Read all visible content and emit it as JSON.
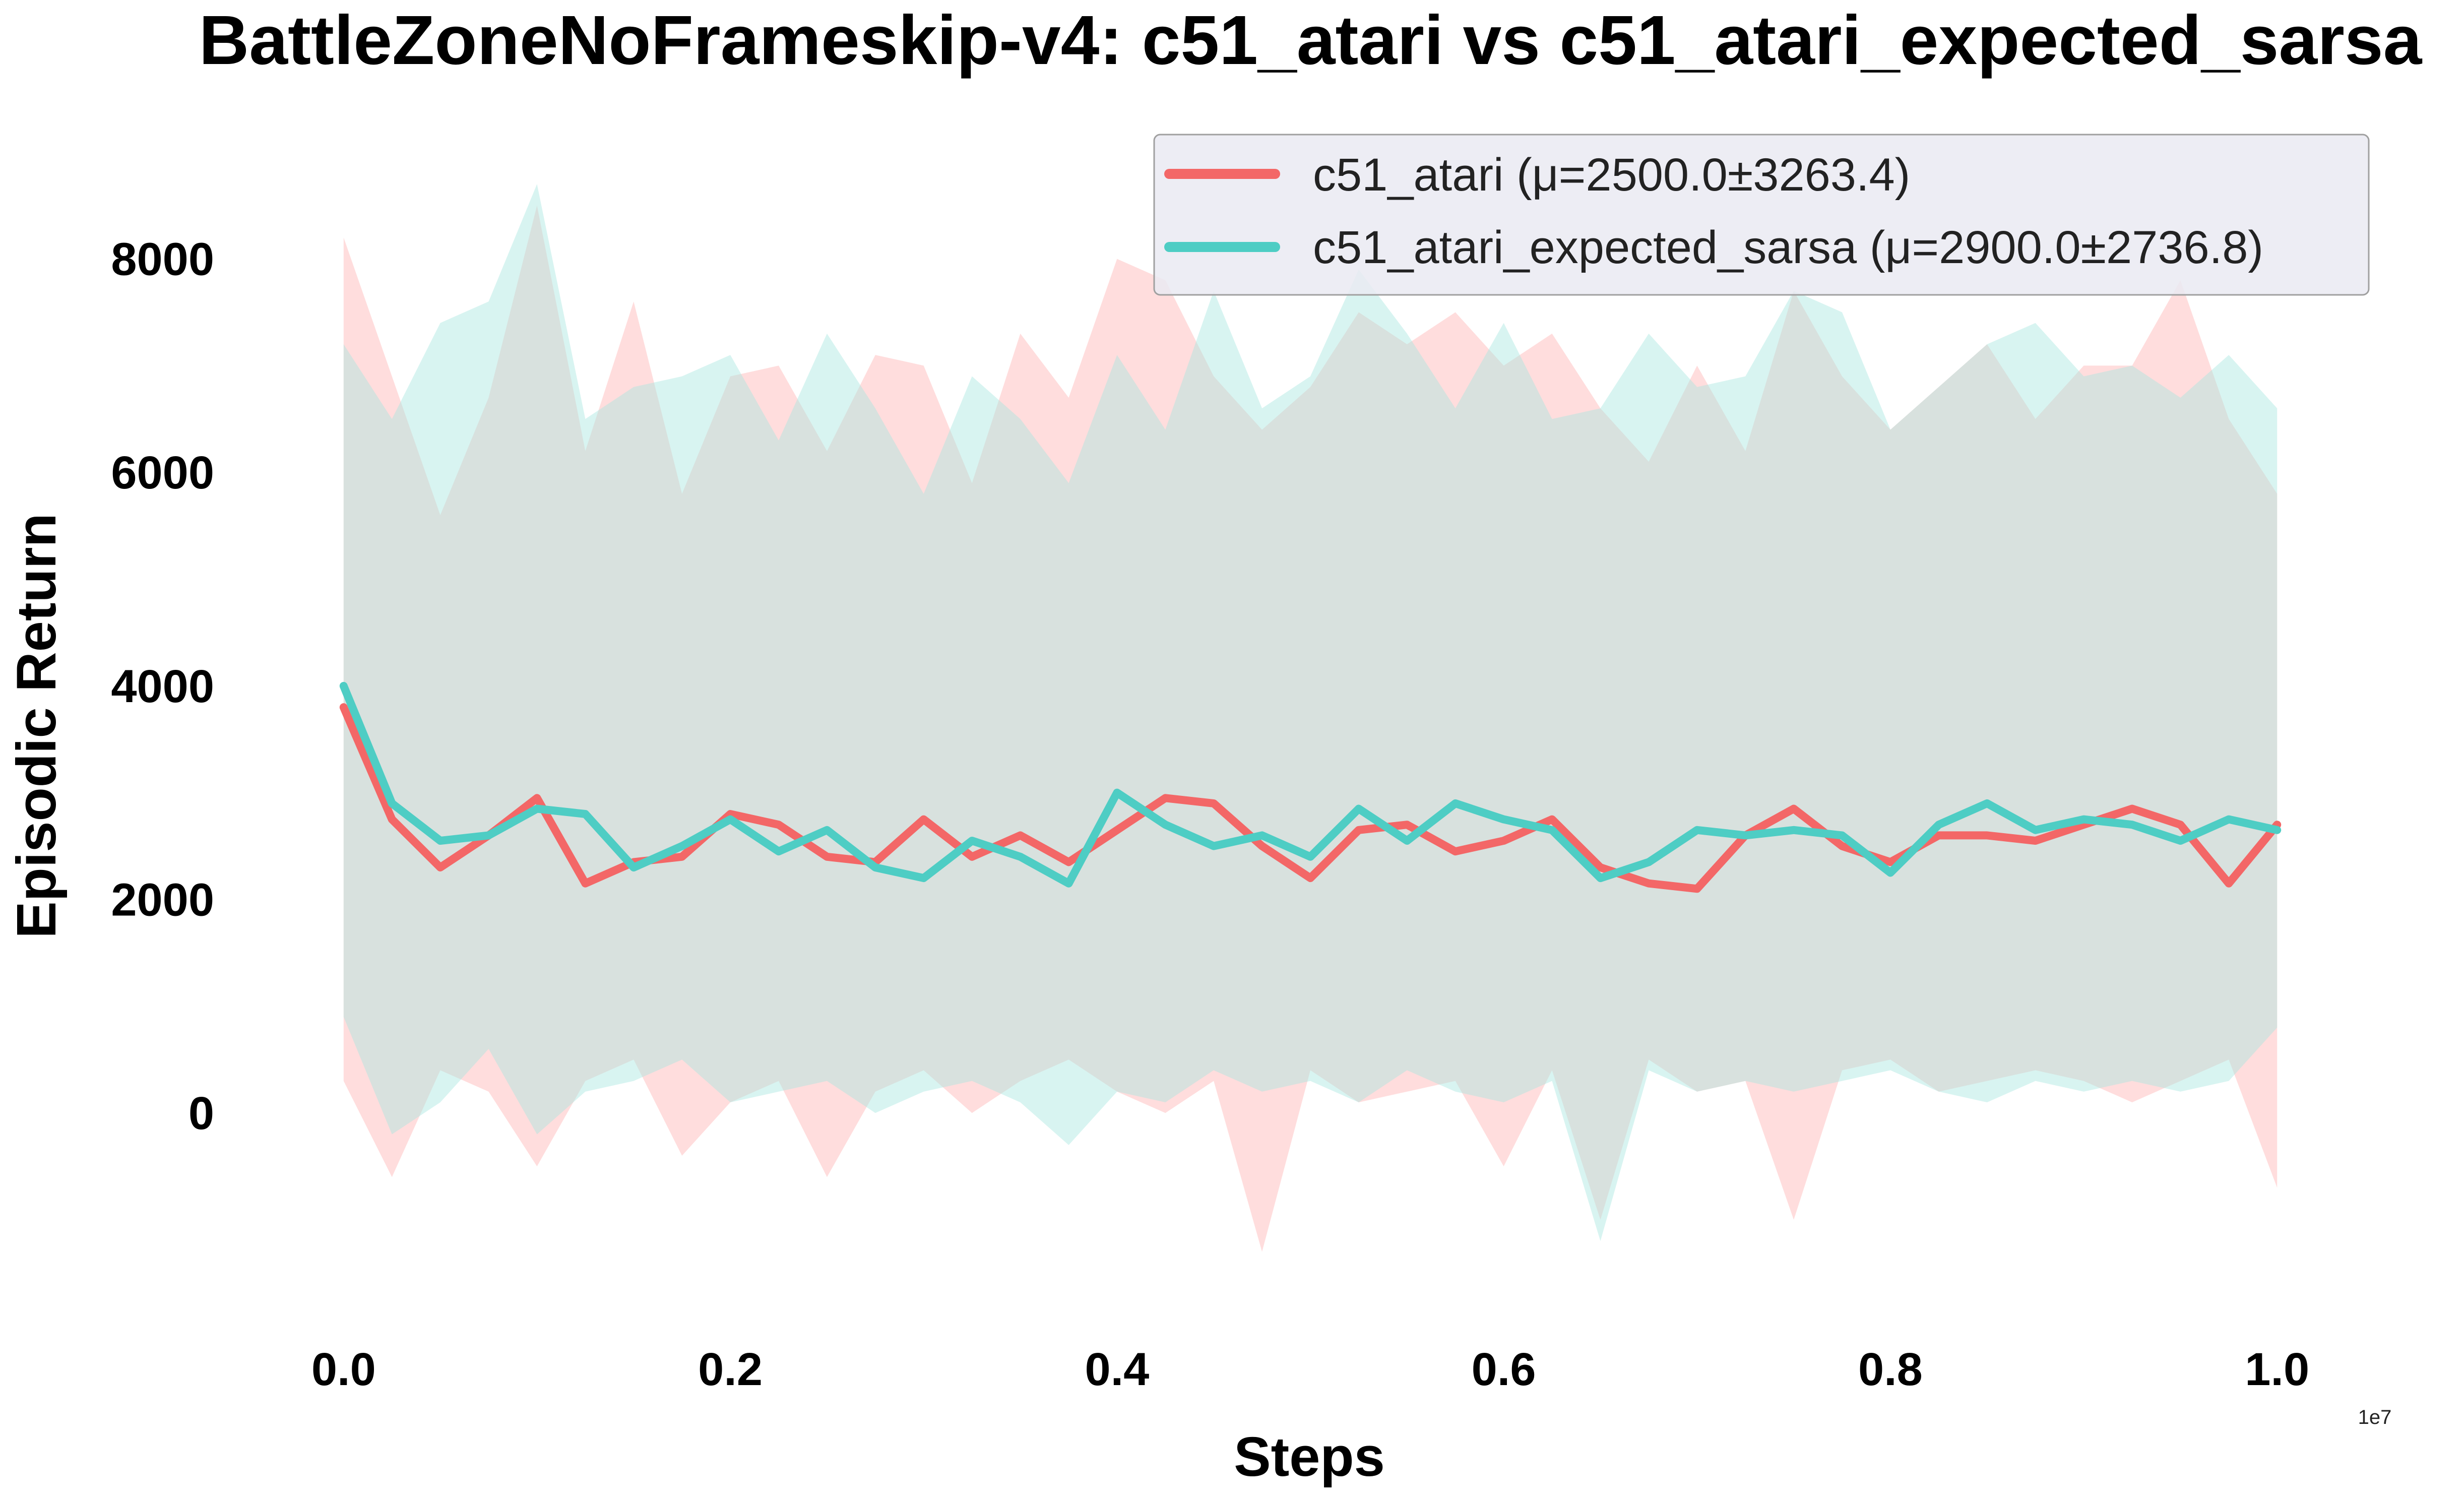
{
  "chart_data": {
    "type": "line",
    "title": "BattleZoneNoFrameskip-v4: c51_atari vs c51_atari_expected_sarsa",
    "xlabel": "Steps",
    "ylabel": "Episodic Return",
    "x_offset_label": "1e7",
    "xlim": [
      -0.05,
      1.05
    ],
    "ylim": [
      -1850,
      9150
    ],
    "x_ticks": [
      0.0,
      0.2,
      0.4,
      0.6,
      0.8,
      1.0
    ],
    "x_tick_labels": [
      "0.0",
      "0.2",
      "0.4",
      "0.6",
      "0.8",
      "1.0"
    ],
    "y_ticks": [
      0,
      2000,
      4000,
      6000,
      8000
    ],
    "y_tick_labels": [
      "0",
      "2000",
      "4000",
      "6000",
      "8000"
    ],
    "grid": false,
    "legend_position": "top-right",
    "x": [
      0.0,
      0.025,
      0.05,
      0.075,
      0.1,
      0.125,
      0.15,
      0.175,
      0.2,
      0.225,
      0.25,
      0.275,
      0.3,
      0.325,
      0.35,
      0.375,
      0.4,
      0.425,
      0.45,
      0.475,
      0.5,
      0.525,
      0.55,
      0.575,
      0.6,
      0.625,
      0.65,
      0.675,
      0.7,
      0.725,
      0.75,
      0.775,
      0.8,
      0.825,
      0.85,
      0.875,
      0.9,
      0.925,
      0.95,
      0.975,
      1.0
    ],
    "series": [
      {
        "name": "c51_atari",
        "legend_label": "c51_atari (μ=2500.0±3263.4)",
        "color": "#F36767",
        "band_color": "#FFB3B3",
        "values": [
          3800,
          2750,
          2300,
          2600,
          2950,
          2150,
          2350,
          2400,
          2800,
          2700,
          2400,
          2350,
          2750,
          2400,
          2600,
          2350,
          2650,
          2950,
          2900,
          2500,
          2200,
          2650,
          2700,
          2450,
          2550,
          2750,
          2300,
          2150,
          2100,
          2600,
          2850,
          2500,
          2350,
          2600,
          2600,
          2550,
          2700,
          2850,
          2700,
          2150,
          2700
        ],
        "band_upper": [
          8200,
          6900,
          5600,
          6700,
          8500,
          6200,
          7600,
          5800,
          6900,
          7000,
          6200,
          7100,
          7000,
          5900,
          7300,
          6700,
          8000,
          7800,
          6900,
          6400,
          6800,
          7500,
          7200,
          7500,
          7000,
          7300,
          6600,
          6100,
          7000,
          6200,
          7700,
          6900,
          6400,
          6800,
          7200,
          6500,
          7000,
          7000,
          7800,
          6500,
          5800
        ],
        "band_lower": [
          300,
          -600,
          400,
          200,
          -500,
          300,
          500,
          -400,
          100,
          300,
          -600,
          200,
          400,
          0,
          300,
          500,
          200,
          0,
          300,
          -1300,
          400,
          100,
          200,
          300,
          -500,
          400,
          -1000,
          500,
          200,
          300,
          -1000,
          400,
          500,
          200,
          300,
          400,
          300,
          100,
          300,
          500,
          -700
        ]
      },
      {
        "name": "c51_atari_expected_sarsa",
        "legend_label": "c51_atari_expected_sarsa (μ=2900.0±2736.8)",
        "color": "#4ECDC4",
        "band_color": "#A8E6E1",
        "values": [
          4000,
          2900,
          2550,
          2600,
          2850,
          2800,
          2300,
          2500,
          2750,
          2450,
          2650,
          2300,
          2200,
          2550,
          2400,
          2150,
          3000,
          2700,
          2500,
          2600,
          2400,
          2850,
          2550,
          2900,
          2750,
          2650,
          2200,
          2350,
          2650,
          2600,
          2650,
          2600,
          2250,
          2700,
          2900,
          2650,
          2750,
          2700,
          2550,
          2750,
          2650
        ],
        "band_upper": [
          7200,
          6500,
          7400,
          7600,
          8700,
          6500,
          6800,
          6900,
          7100,
          6300,
          7300,
          6600,
          5800,
          6900,
          6500,
          5900,
          7100,
          6400,
          7700,
          6600,
          6900,
          7900,
          7300,
          6600,
          7400,
          6500,
          6600,
          7300,
          6800,
          6900,
          7700,
          7500,
          6400,
          6800,
          7200,
          7400,
          6900,
          7000,
          6700,
          7100,
          6600
        ],
        "band_lower": [
          900,
          -200,
          100,
          600,
          -200,
          200,
          300,
          500,
          100,
          200,
          300,
          0,
          200,
          300,
          100,
          -300,
          200,
          100,
          400,
          200,
          300,
          100,
          400,
          200,
          100,
          300,
          -1200,
          400,
          200,
          300,
          200,
          300,
          400,
          200,
          100,
          300,
          200,
          300,
          200,
          300,
          800
        ]
      }
    ]
  }
}
